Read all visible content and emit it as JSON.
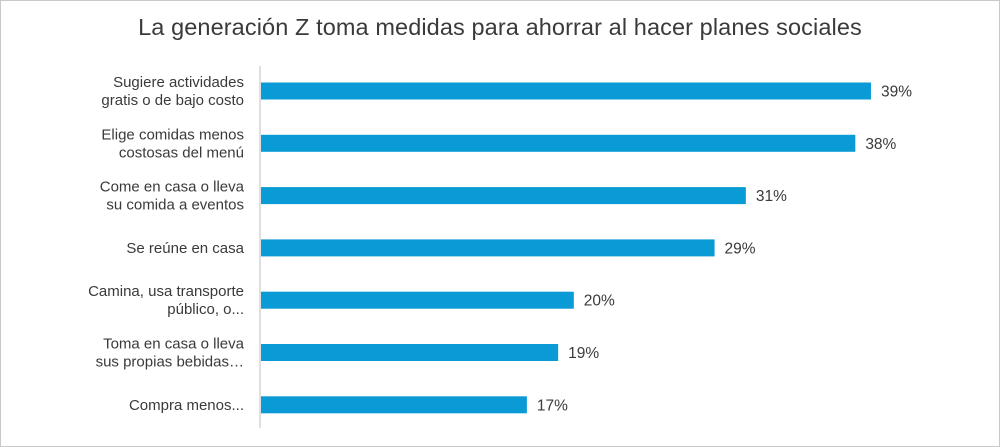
{
  "chart_data": {
    "type": "bar",
    "orientation": "horizontal",
    "title": "La generación Z toma medidas para ahorrar al hacer planes sociales",
    "categories": [
      [
        "Sugiere actividades",
        "gratis o de bajo costo"
      ],
      [
        "Elige comidas menos",
        "costosas del menú"
      ],
      [
        "Come en casa o lleva",
        "su comida a eventos"
      ],
      [
        "Se reúne en casa"
      ],
      [
        "Camina, usa transporte",
        "público, o..."
      ],
      [
        "Toma en casa o lleva",
        "sus propias bebidas…"
      ],
      [
        "Compra menos..."
      ]
    ],
    "values": [
      39,
      38,
      31,
      29,
      20,
      19,
      17
    ],
    "value_labels": [
      "39%",
      "38%",
      "31%",
      "29%",
      "20%",
      "19%",
      "17%"
    ],
    "xlim": [
      0,
      45
    ],
    "grid": false,
    "bar_color": "#0a9ad6",
    "axis_color": "#bfbfbf"
  }
}
